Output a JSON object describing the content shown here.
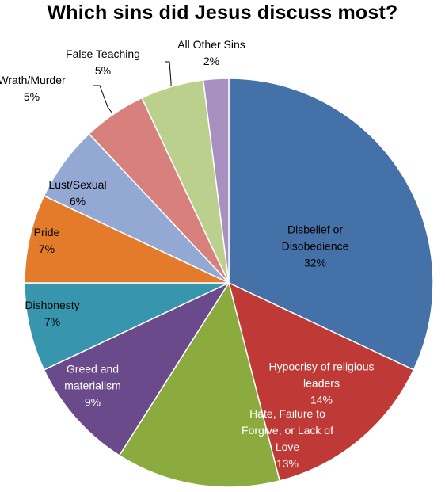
{
  "chart_data": {
    "type": "pie",
    "title": "Which sins did Jesus discuss most?",
    "slices": [
      {
        "label": "Disbelief or Disobedience",
        "label_lines": [
          "Disbelief or",
          "Disobedience"
        ],
        "value": 32,
        "value_text": "32%",
        "color": "#4472a8",
        "text_color": "#000000"
      },
      {
        "label": "Hypocrisy of religious leaders",
        "label_lines": [
          "Hypocrisy of religious",
          "leaders"
        ],
        "value": 14,
        "value_text": "14%",
        "color": "#bf3a36",
        "text_color": "#ffffff"
      },
      {
        "label": "Hate, Failure to Forgive, or Lack of Love",
        "label_lines": [
          "Hate, Failure to",
          "Forgive, or Lack of",
          "Love"
        ],
        "value": 13,
        "value_text": "13%",
        "color": "#8bab3f",
        "text_color": "#ffffff"
      },
      {
        "label": "Greed and materialism",
        "label_lines": [
          "Greed and",
          "materialism"
        ],
        "value": 9,
        "value_text": "9%",
        "color": "#6b4a8c",
        "text_color": "#ffffff"
      },
      {
        "label": "Dishonesty",
        "label_lines": [
          "Dishonesty"
        ],
        "value": 7,
        "value_text": "7%",
        "color": "#3796ad",
        "text_color": "#000000"
      },
      {
        "label": "Pride",
        "label_lines": [
          "Pride"
        ],
        "value": 7,
        "value_text": "7%",
        "color": "#e37b2a",
        "text_color": "#000000"
      },
      {
        "label": "Lust/Sexual",
        "label_lines": [
          "Lust/Sexual"
        ],
        "value": 6,
        "value_text": "6%",
        "color": "#94a8d4",
        "text_color": "#000000"
      },
      {
        "label": "Wrath/Murder",
        "label_lines": [
          "Wrath/Murder"
        ],
        "value": 5,
        "value_text": "5%",
        "color": "#d8807b",
        "text_color": "#000000",
        "outside": true
      },
      {
        "label": "False Teaching",
        "label_lines": [
          "False Teaching"
        ],
        "value": 5,
        "value_text": "5%",
        "color": "#bcd08e",
        "text_color": "#000000",
        "outside": true
      },
      {
        "label": "All Other Sins",
        "label_lines": [
          "All Other Sins"
        ],
        "value": 2,
        "value_text": "2%",
        "color": "#a890c0",
        "text_color": "#000000",
        "outside": true
      }
    ]
  }
}
